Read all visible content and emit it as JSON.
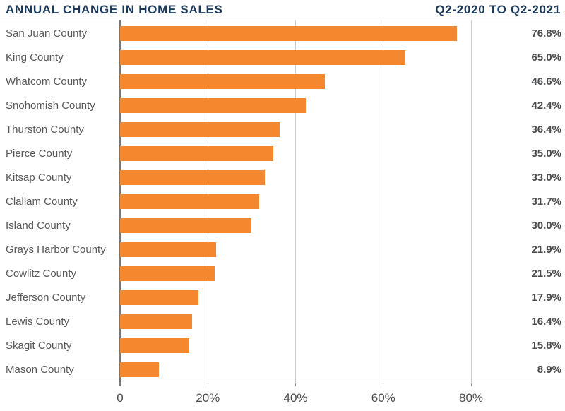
{
  "header": {
    "title": "ANNUAL CHANGE IN HOME SALES",
    "subtitle": "Q2-2020 TO Q2-2021"
  },
  "colors": {
    "bar": "#F5882F",
    "title": "#1B3A5C",
    "label": "#58595B",
    "value": "#4B4C4E",
    "tick_label": "#4A4B4D",
    "gridline": "#CACBCD",
    "axis_line": "#97999C",
    "zero_line": "#76777A"
  },
  "chart_data": {
    "type": "bar",
    "orientation": "horizontal",
    "title": "ANNUAL CHANGE IN HOME SALES",
    "subtitle": "Q2-2020 TO Q2-2021",
    "categories": [
      "San Juan County",
      "King County",
      "Whatcom County",
      "Snohomish County",
      "Thurston County",
      "Pierce County",
      "Kitsap County",
      "Clallam County",
      "Island County",
      "Grays Harbor County",
      "Cowlitz County",
      "Jefferson County",
      "Lewis County",
      "Skagit County",
      "Mason County"
    ],
    "values": [
      76.8,
      65.0,
      46.6,
      42.4,
      36.4,
      35.0,
      33.0,
      31.7,
      30.0,
      21.9,
      21.5,
      17.9,
      16.4,
      15.8,
      8.9
    ],
    "value_labels": [
      "76.8%",
      "65.0%",
      "46.6%",
      "42.4%",
      "36.4%",
      "35.0%",
      "33.0%",
      "31.7%",
      "30.0%",
      "21.9%",
      "21.5%",
      "17.9%",
      "16.4%",
      "15.8%",
      "8.9%"
    ],
    "xlabel": "",
    "ylabel": "",
    "x_ticks": [
      {
        "value": 0,
        "label": "0"
      },
      {
        "value": 20,
        "label": "20%"
      },
      {
        "value": 40,
        "label": "40%"
      },
      {
        "value": 60,
        "label": "60%"
      },
      {
        "value": 80,
        "label": "80%"
      }
    ],
    "xlim": [
      0,
      101.4
    ],
    "grid": true,
    "legend": false,
    "bar_value_position": "right-margin"
  }
}
